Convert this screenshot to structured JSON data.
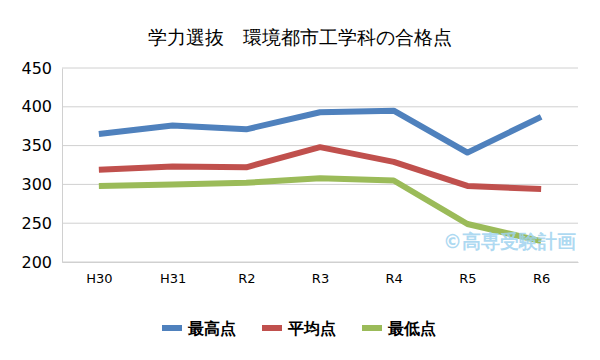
{
  "chart_data": {
    "type": "line",
    "title": "学力選抜　環境都市工学科の合格点",
    "annotation": "©高専受験計画",
    "categories": [
      "H30",
      "H31",
      "R2",
      "R3",
      "R4",
      "R5",
      "R6"
    ],
    "series": [
      {
        "name": "最高点",
        "color": "#4f81bd",
        "values": [
          365,
          376,
          371,
          393,
          395,
          341,
          387
        ]
      },
      {
        "name": "平均点",
        "color": "#c0504d",
        "values": [
          319,
          323,
          322,
          348,
          329,
          298,
          294
        ]
      },
      {
        "name": "最低点",
        "color": "#9bbb59",
        "values": [
          298,
          300,
          302,
          308,
          305,
          249,
          227
        ]
      }
    ],
    "ylim": [
      200,
      450
    ],
    "yticks": [
      200,
      250,
      300,
      350,
      400,
      450
    ],
    "grid": true,
    "legend": "bottom"
  }
}
